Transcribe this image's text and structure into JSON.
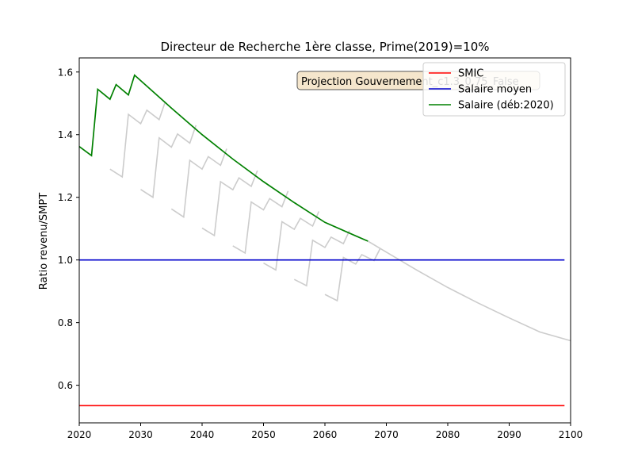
{
  "chart_data": {
    "type": "line",
    "title": "Directeur de Recherche 1ère classe, Prime(2019)=10%",
    "xlabel": "",
    "ylabel": "Ratio revenu/SMPT",
    "xlim": [
      2020,
      2100
    ],
    "ylim": [
      0.48,
      1.645
    ],
    "xticks": [
      2020,
      2030,
      2040,
      2050,
      2060,
      2070,
      2080,
      2090,
      2100
    ],
    "yticks": [
      0.6,
      0.8,
      1.0,
      1.2,
      1.4,
      1.6
    ],
    "grid": false,
    "legend_position": "top-right",
    "annotation": "Projection Gouvernement_c1.3_0.75_False",
    "colors": {
      "smic": "#ff0000",
      "mean": "#0000cc",
      "salary": "#008000",
      "cohorts": "#cccccc",
      "annotation_bg": "#f5e6cc"
    },
    "series": [
      {
        "name": "SMIC",
        "x": [
          2020,
          2099
        ],
        "values": [
          0.535,
          0.535
        ]
      },
      {
        "name": "Salaire moyen",
        "x": [
          2020,
          2099
        ],
        "values": [
          1.0,
          1.0
        ]
      },
      {
        "name": "Salaire (déb:2020)",
        "x": [
          2020,
          2022,
          2023,
          2025,
          2026,
          2028,
          2029,
          2035,
          2040,
          2045,
          2050,
          2055,
          2060,
          2065,
          2067
        ],
        "values": [
          1.362,
          1.333,
          1.545,
          1.513,
          1.56,
          1.527,
          1.59,
          1.485,
          1.4,
          1.322,
          1.25,
          1.183,
          1.12,
          1.077,
          1.06
        ]
      }
    ],
    "cohort_series": [
      {
        "x": [
          2025,
          2027,
          2028,
          2030,
          2031,
          2033,
          2034
        ],
        "values": [
          1.29,
          1.265,
          1.465,
          1.435,
          1.478,
          1.448,
          1.505
        ]
      },
      {
        "x": [
          2030,
          2032,
          2033,
          2035,
          2036,
          2038,
          2039
        ],
        "values": [
          1.225,
          1.2,
          1.39,
          1.36,
          1.402,
          1.373,
          1.43
        ]
      },
      {
        "x": [
          2035,
          2037,
          2038,
          2040,
          2041,
          2043,
          2044
        ],
        "values": [
          1.163,
          1.137,
          1.318,
          1.29,
          1.33,
          1.302,
          1.355
        ]
      },
      {
        "x": [
          2040,
          2042,
          2043,
          2045,
          2046,
          2048,
          2049
        ],
        "values": [
          1.102,
          1.078,
          1.25,
          1.224,
          1.262,
          1.235,
          1.285
        ]
      },
      {
        "x": [
          2045,
          2047,
          2048,
          2050,
          2051,
          2053,
          2054
        ],
        "values": [
          1.045,
          1.022,
          1.185,
          1.16,
          1.196,
          1.17,
          1.22
        ]
      },
      {
        "x": [
          2050,
          2052,
          2053,
          2055,
          2056,
          2058,
          2059
        ],
        "values": [
          0.99,
          0.968,
          1.122,
          1.098,
          1.133,
          1.108,
          1.155
        ]
      },
      {
        "x": [
          2055,
          2057,
          2058,
          2060,
          2061,
          2063,
          2064
        ],
        "values": [
          0.938,
          0.918,
          1.063,
          1.04,
          1.073,
          1.052,
          1.094
        ]
      },
      {
        "x": [
          2060,
          2062,
          2063,
          2065,
          2066,
          2068,
          2069
        ],
        "values": [
          0.89,
          0.87,
          1.008,
          0.987,
          1.017,
          0.998,
          1.037
        ]
      },
      {
        "x": [
          2067,
          2070,
          2075,
          2080,
          2085,
          2090,
          2095,
          2100
        ],
        "values": [
          1.06,
          1.025,
          0.967,
          0.912,
          0.862,
          0.815,
          0.77,
          0.742
        ]
      }
    ]
  }
}
